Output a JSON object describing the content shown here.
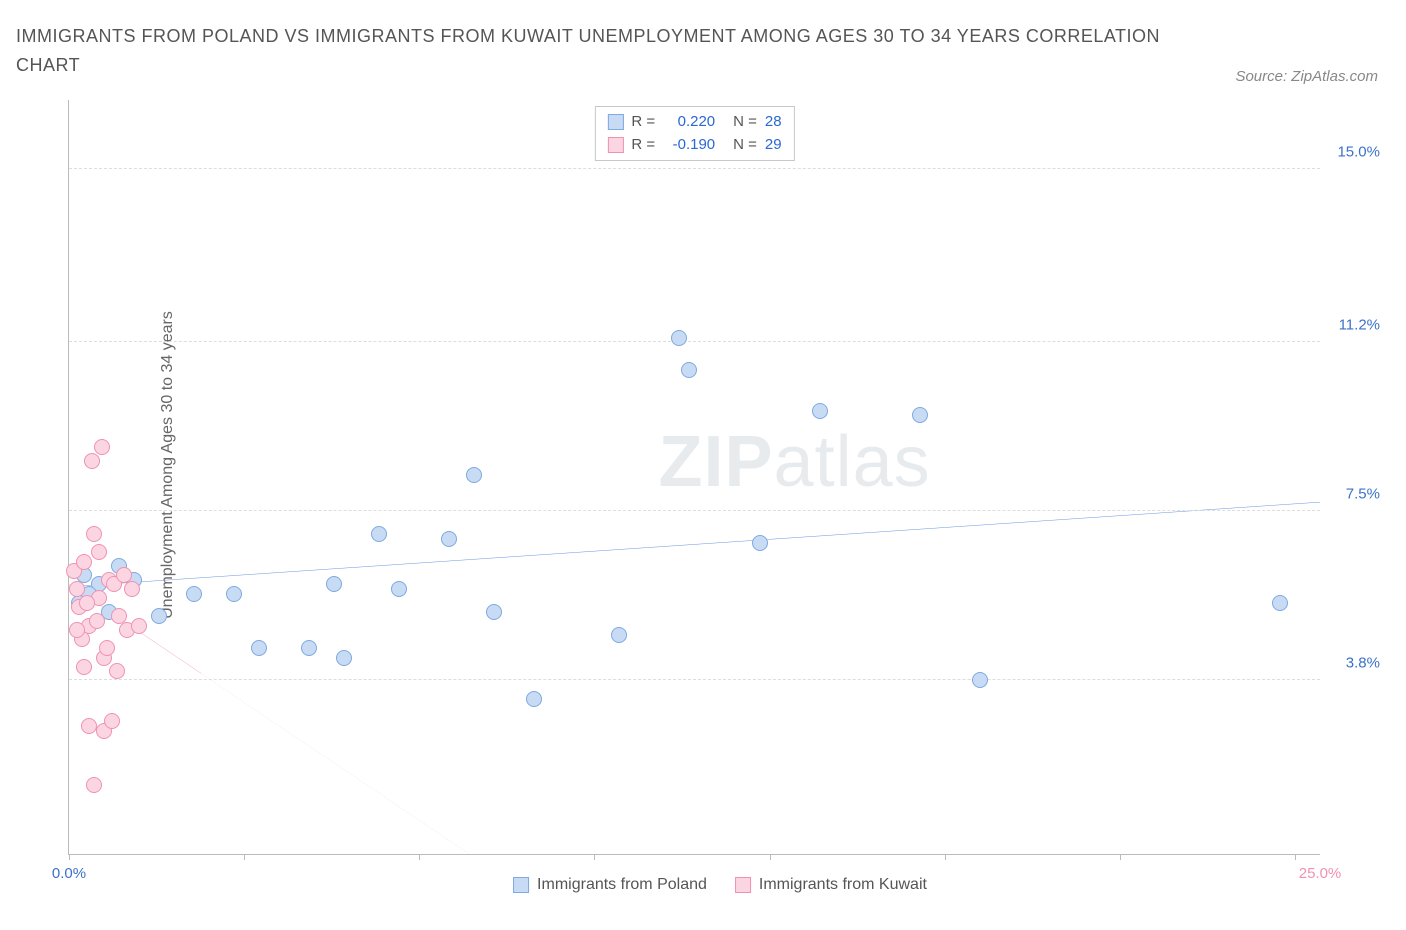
{
  "title": "IMMIGRANTS FROM POLAND VS IMMIGRANTS FROM KUWAIT UNEMPLOYMENT AMONG AGES 30 TO 34 YEARS CORRELATION CHART",
  "source": "Source: ZipAtlas.com",
  "y_axis_label": "Unemployment Among Ages 30 to 34 years",
  "watermark_a": "ZIP",
  "watermark_b": "atlas",
  "chart": {
    "type": "scatter",
    "xlim": [
      0,
      25
    ],
    "ylim": [
      0,
      16.5
    ],
    "background_color": "#ffffff",
    "grid_color": "#dddddd",
    "axis_color": "#bbbbbb",
    "y_ticks": [
      {
        "value": 15.0,
        "label": "15.0%",
        "color": "#3a72c9"
      },
      {
        "value": 11.2,
        "label": "11.2%",
        "color": "#3a72c9"
      },
      {
        "value": 7.5,
        "label": "7.5%",
        "color": "#3a72c9"
      },
      {
        "value": 3.8,
        "label": "3.8%",
        "color": "#3a72c9"
      }
    ],
    "x_ticks": [
      0,
      3.5,
      7.0,
      10.5,
      14.0,
      17.5,
      21.0,
      24.5
    ],
    "x_tick_labels": [
      {
        "value": 0.0,
        "label": "0.0%",
        "color": "#3a72c9"
      },
      {
        "value": 25.0,
        "label": "25.0%",
        "color": "#f191b0"
      }
    ],
    "series": [
      {
        "name": "Immigrants from Poland",
        "fill_color": "#c7dbf4",
        "stroke_color": "#7fa9e0",
        "trend_color": "#2a68d6",
        "trend_dash": "none",
        "trend": {
          "x1": 0.0,
          "y1": 5.85,
          "x2": 25.0,
          "y2": 7.7
        },
        "points": [
          {
            "x": 0.3,
            "y": 6.1
          },
          {
            "x": 0.6,
            "y": 5.9
          },
          {
            "x": 0.4,
            "y": 5.7
          },
          {
            "x": 1.0,
            "y": 6.3
          },
          {
            "x": 0.8,
            "y": 5.3
          },
          {
            "x": 1.3,
            "y": 6.0
          },
          {
            "x": 0.2,
            "y": 5.5
          },
          {
            "x": 1.8,
            "y": 5.2
          },
          {
            "x": 2.5,
            "y": 5.7
          },
          {
            "x": 3.3,
            "y": 5.7
          },
          {
            "x": 3.8,
            "y": 4.5
          },
          {
            "x": 4.8,
            "y": 4.5
          },
          {
            "x": 5.3,
            "y": 5.9
          },
          {
            "x": 5.5,
            "y": 4.3
          },
          {
            "x": 6.2,
            "y": 7.0
          },
          {
            "x": 6.6,
            "y": 5.8
          },
          {
            "x": 7.6,
            "y": 6.9
          },
          {
            "x": 8.1,
            "y": 8.3
          },
          {
            "x": 8.5,
            "y": 5.3
          },
          {
            "x": 9.3,
            "y": 3.4
          },
          {
            "x": 11.0,
            "y": 4.8
          },
          {
            "x": 12.2,
            "y": 11.3
          },
          {
            "x": 12.4,
            "y": 10.6
          },
          {
            "x": 13.8,
            "y": 6.8
          },
          {
            "x": 15.0,
            "y": 9.7
          },
          {
            "x": 17.0,
            "y": 9.6
          },
          {
            "x": 18.2,
            "y": 3.8
          },
          {
            "x": 24.2,
            "y": 5.5
          }
        ]
      },
      {
        "name": "Immigrants from Kuwait",
        "fill_color": "#fbd6e2",
        "stroke_color": "#f191b0",
        "trend_color": "#f191b0",
        "trend_dash": "5,5",
        "trend": {
          "x1": 0.0,
          "y1": 5.9,
          "x2": 8.0,
          "y2": 0.0
        },
        "points": [
          {
            "x": 0.1,
            "y": 6.2
          },
          {
            "x": 0.3,
            "y": 6.4
          },
          {
            "x": 0.5,
            "y": 7.0
          },
          {
            "x": 0.15,
            "y": 5.8
          },
          {
            "x": 0.2,
            "y": 5.4
          },
          {
            "x": 0.4,
            "y": 5.0
          },
          {
            "x": 0.6,
            "y": 5.6
          },
          {
            "x": 0.8,
            "y": 6.0
          },
          {
            "x": 0.7,
            "y": 4.3
          },
          {
            "x": 0.9,
            "y": 5.9
          },
          {
            "x": 1.0,
            "y": 5.2
          },
          {
            "x": 0.45,
            "y": 8.6
          },
          {
            "x": 0.65,
            "y": 8.9
          },
          {
            "x": 0.25,
            "y": 4.7
          },
          {
            "x": 0.35,
            "y": 5.5
          },
          {
            "x": 0.55,
            "y": 5.1
          },
          {
            "x": 0.15,
            "y": 4.9
          },
          {
            "x": 0.75,
            "y": 4.5
          },
          {
            "x": 0.95,
            "y": 4.0
          },
          {
            "x": 0.4,
            "y": 2.8
          },
          {
            "x": 0.7,
            "y": 2.7
          },
          {
            "x": 0.85,
            "y": 2.9
          },
          {
            "x": 0.5,
            "y": 1.5
          },
          {
            "x": 1.25,
            "y": 5.8
          },
          {
            "x": 1.15,
            "y": 4.9
          },
          {
            "x": 1.1,
            "y": 6.1
          },
          {
            "x": 1.4,
            "y": 5.0
          },
          {
            "x": 0.6,
            "y": 6.6
          },
          {
            "x": 0.3,
            "y": 4.1
          }
        ]
      }
    ],
    "stats_legend": [
      {
        "swatch_fill": "#c7dbf4",
        "swatch_stroke": "#7fa9e0",
        "r_label": "R =",
        "r_value": "0.220",
        "n_label": "N =",
        "n_value": "28",
        "value_color": "#2a68d6"
      },
      {
        "swatch_fill": "#fbd6e2",
        "swatch_stroke": "#f191b0",
        "r_label": "R =",
        "r_value": "-0.190",
        "n_label": "N =",
        "n_value": "29",
        "value_color": "#2a68d6"
      }
    ]
  }
}
